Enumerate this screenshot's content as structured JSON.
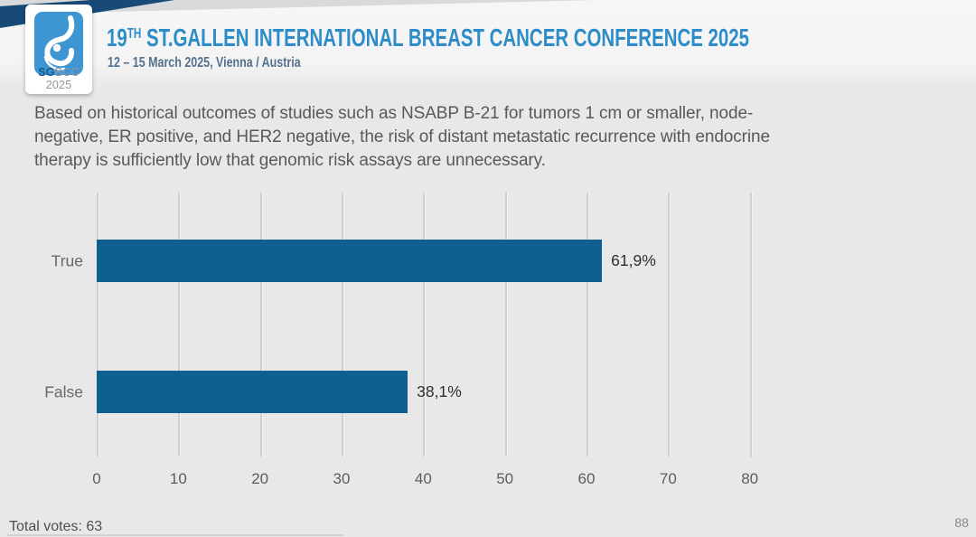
{
  "header": {
    "logo": {
      "icon": "sgbcc-breast-drop-icon",
      "sg": "SG",
      "rest": "BCC 2025"
    },
    "title_num": "19",
    "title_sup": "TH",
    "title_rest": " ST.GALLEN INTERNATIONAL BREAST CANCER CONFERENCE 2025",
    "subtitle": "12 – 15 March 2025, Vienna / Austria"
  },
  "question": {
    "lines": [
      "Based on historical outcomes of studies such as NSABP B-21 for tumors 1 cm or smaller, node-",
      "negative, ER positive, and HER2 negative, the risk of distant metastatic recurrence with endocrine",
      "therapy is sufficiently low that genomic risk assays are unnecessary."
    ]
  },
  "chart_data": {
    "type": "bar",
    "orientation": "horizontal",
    "title": "",
    "xlabel": "",
    "ylabel": "",
    "categories": [
      "True",
      "False"
    ],
    "values": [
      61.9,
      38.1
    ],
    "value_labels": [
      "61,9%",
      "38,1%"
    ],
    "x_ticks": [
      0,
      10,
      20,
      30,
      40,
      50,
      60,
      70,
      80
    ],
    "xlim": [
      0,
      90
    ],
    "grid": true,
    "legend": false,
    "bar_color": "#0f608f",
    "grid_color": "#cfcfcf"
  },
  "footer": {
    "total_votes": "Total votes: 63",
    "page_number": "88"
  },
  "colors": {
    "accent_title_blue": "#2e8cc7",
    "subtitle_blue_gray": "#54718d",
    "navy_ribbon": "#174a77",
    "logo_blue": "#3d96d2",
    "bar_blue": "#0f608f",
    "background": "#e8e8e8"
  }
}
